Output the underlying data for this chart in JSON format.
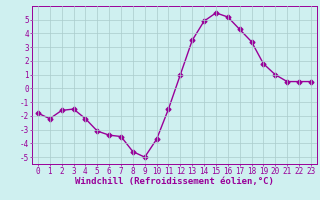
{
  "x": [
    0,
    1,
    2,
    3,
    4,
    5,
    6,
    7,
    8,
    9,
    10,
    11,
    12,
    13,
    14,
    15,
    16,
    17,
    18,
    19,
    20,
    21,
    22,
    23
  ],
  "y": [
    -1.8,
    -2.2,
    -1.6,
    -1.5,
    -2.2,
    -3.1,
    -3.4,
    -3.5,
    -4.6,
    -5.0,
    -3.7,
    -1.5,
    1.0,
    3.5,
    4.9,
    5.5,
    5.2,
    4.3,
    3.4,
    1.8,
    1.0,
    0.5,
    0.5,
    0.5
  ],
  "line_color": "#990099",
  "marker": "D",
  "marker_size": 2.5,
  "bg_color": "#cff0f0",
  "grid_color": "#aacccc",
  "xlabel": "Windchill (Refroidissement éolien,°C)",
  "xlim": [
    -0.5,
    23.5
  ],
  "ylim": [
    -5.5,
    6.0
  ],
  "yticks": [
    -5,
    -4,
    -3,
    -2,
    -1,
    0,
    1,
    2,
    3,
    4,
    5
  ],
  "xticks": [
    0,
    1,
    2,
    3,
    4,
    5,
    6,
    7,
    8,
    9,
    10,
    11,
    12,
    13,
    14,
    15,
    16,
    17,
    18,
    19,
    20,
    21,
    22,
    23
  ],
  "tick_color": "#990099",
  "label_color": "#990099",
  "font_size_xlabel": 6.5,
  "font_size_tick": 5.5,
  "line_width": 1.0
}
